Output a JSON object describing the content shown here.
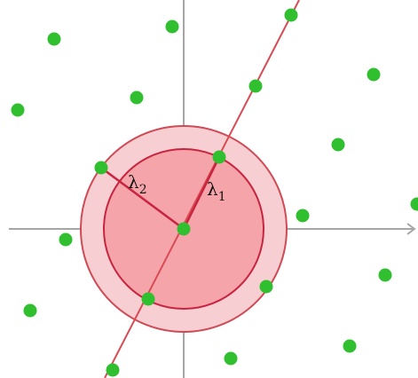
{
  "colors": {
    "background": "#ffffff",
    "axis": "#a6a6a6",
    "lattice_point": "#2fbf2f",
    "basis_line": "#d84b55",
    "outer_disk_fill": "#f7cfd2",
    "outer_disk_stroke": "#d04a55",
    "inner_disk_fill": "#f5a5aa",
    "inner_disk_stroke": "#c9243f",
    "radius_line": "#c9243f"
  },
  "labels": {
    "lambda1": {
      "symbol": "λ",
      "subscript": "1"
    },
    "lambda2": {
      "symbol": "λ",
      "subscript": "2"
    }
  },
  "icons": {
    "lattice_point": "green-dot"
  }
}
